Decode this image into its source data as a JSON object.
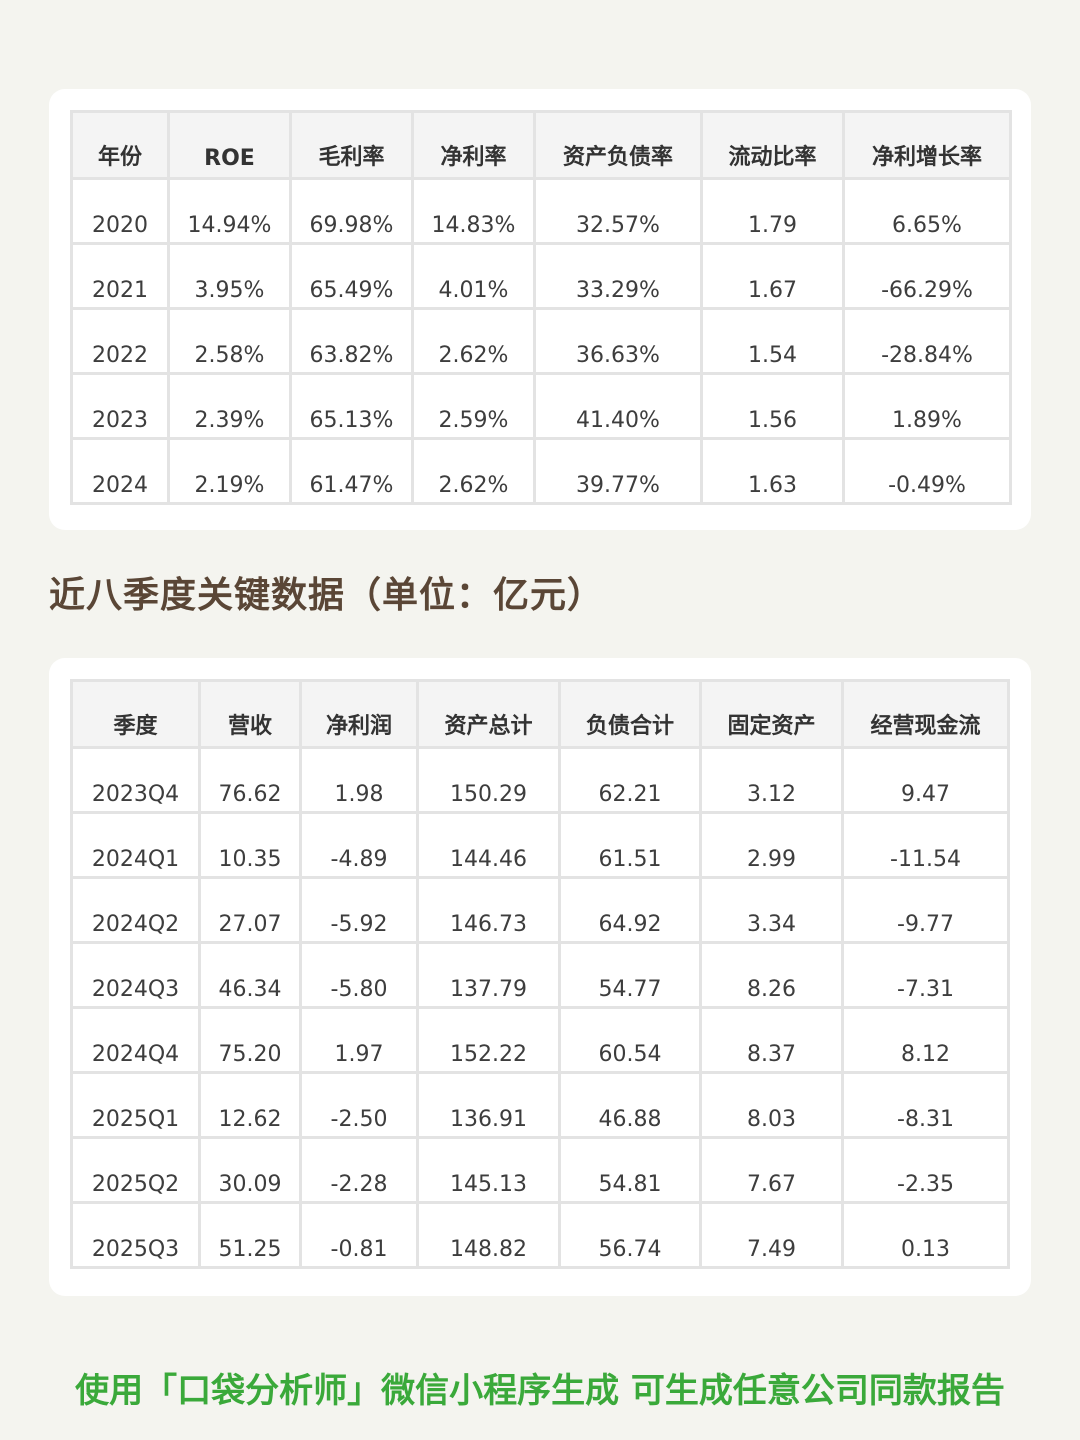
{
  "annual_table": {
    "headers": [
      "年份",
      "ROE",
      "毛利率",
      "净利率",
      "资产负债率",
      "流动比率",
      "净利增长率"
    ],
    "rows": [
      [
        "2020",
        "14.94%",
        "69.98%",
        "14.83%",
        "32.57%",
        "1.79",
        "6.65%"
      ],
      [
        "2021",
        "3.95%",
        "65.49%",
        "4.01%",
        "33.29%",
        "1.67",
        "-66.29%"
      ],
      [
        "2022",
        "2.58%",
        "63.82%",
        "2.62%",
        "36.63%",
        "1.54",
        "-28.84%"
      ],
      [
        "2023",
        "2.39%",
        "65.13%",
        "2.59%",
        "41.40%",
        "1.56",
        "1.89%"
      ],
      [
        "2024",
        "2.19%",
        "61.47%",
        "2.62%",
        "39.77%",
        "1.63",
        "-0.49%"
      ]
    ]
  },
  "section_title": "近八季度关键数据（单位：亿元）",
  "quarterly_table": {
    "headers": [
      "季度",
      "营收",
      "净利润",
      "资产总计",
      "负债合计",
      "固定资产",
      "经营现金流"
    ],
    "rows": [
      [
        "2023Q4",
        "76.62",
        "1.98",
        "150.29",
        "62.21",
        "3.12",
        "9.47"
      ],
      [
        "2024Q1",
        "10.35",
        "-4.89",
        "144.46",
        "61.51",
        "2.99",
        "-11.54"
      ],
      [
        "2024Q2",
        "27.07",
        "-5.92",
        "146.73",
        "64.92",
        "3.34",
        "-9.77"
      ],
      [
        "2024Q3",
        "46.34",
        "-5.80",
        "137.79",
        "54.77",
        "8.26",
        "-7.31"
      ],
      [
        "2024Q4",
        "75.20",
        "1.97",
        "152.22",
        "60.54",
        "8.37",
        "8.12"
      ],
      [
        "2025Q1",
        "12.62",
        "-2.50",
        "136.91",
        "46.88",
        "8.03",
        "-8.31"
      ],
      [
        "2025Q2",
        "30.09",
        "-2.28",
        "145.13",
        "54.81",
        "7.67",
        "-2.35"
      ],
      [
        "2025Q3",
        "51.25",
        "-0.81",
        "148.82",
        "56.74",
        "7.49",
        "0.13"
      ]
    ]
  },
  "footer_note": "使用「口袋分析师」微信小程序生成 可生成任意公司同款报告",
  "colors": {
    "background": "#f4f4ef",
    "card": "#ffffff",
    "header_bg": "#f4f4f4",
    "grid": "#e3e3e3",
    "section_title": "#5a4636",
    "footer": "#3aa93a"
  }
}
